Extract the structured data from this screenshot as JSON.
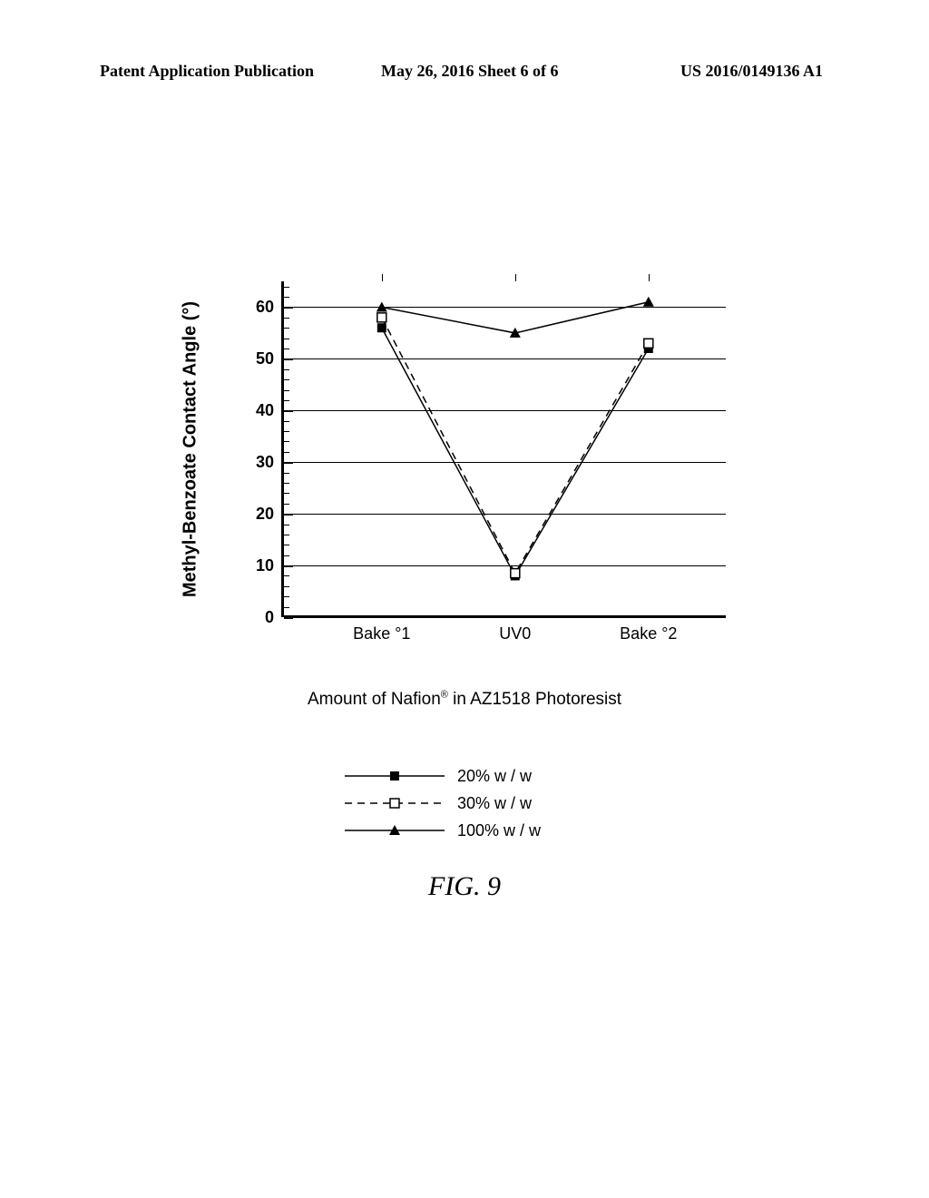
{
  "header": {
    "left": "Patent Application Publication",
    "center": "May 26, 2016  Sheet 6 of 6",
    "right": "US 2016/0149136 A1"
  },
  "chart": {
    "type": "line",
    "background_color": "#ffffff",
    "grid_color": "#000000",
    "ylabel": "Methyl-Benzoate Contact Angle (°)",
    "label_fontsize": 20,
    "ylim": [
      0,
      65
    ],
    "ytick_step": 10,
    "yticks": [
      0,
      10,
      20,
      30,
      40,
      50,
      60
    ],
    "y_minor_step": 2,
    "categories": [
      "Bake °1",
      "UV0",
      "Bake °2"
    ],
    "series": [
      {
        "name": "20% w / w",
        "label": "20% w / w",
        "values": [
          56,
          8,
          52
        ],
        "color": "#000000",
        "marker": "filled-square",
        "dash": "solid",
        "line_width": 1.5
      },
      {
        "name": "30% w / w",
        "label": "30% w / w",
        "values": [
          58,
          8.5,
          53
        ],
        "color": "#000000",
        "marker": "open-square",
        "dash": "dashed",
        "line_width": 1.5
      },
      {
        "name": "100% w / w",
        "label": "100% w / w",
        "values": [
          60,
          55,
          61
        ],
        "color": "#000000",
        "marker": "filled-triangle",
        "dash": "solid",
        "line_width": 1.5
      }
    ]
  },
  "sub_caption": "Amount of Nafion® in AZ1518 Photoresist",
  "figure_caption": "FIG. 9"
}
